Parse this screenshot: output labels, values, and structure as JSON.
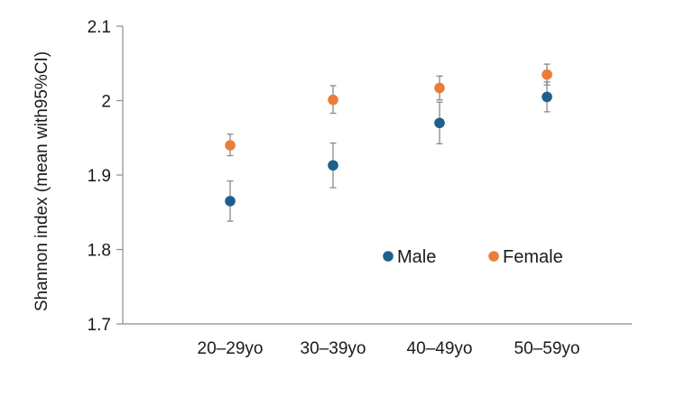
{
  "chart_data": {
    "type": "scatter",
    "categories": [
      "20–29yo",
      "30–39yo",
      "40–49yo",
      "50–59yo"
    ],
    "ylabel": "Shannon index (mean with95%CI)",
    "xlabel": "",
    "ylim": [
      1.7,
      2.1
    ],
    "yticks": [
      "1.7",
      "1.8",
      "1.9",
      "2",
      "2.1"
    ],
    "grid": false,
    "legend_position": "lower-right",
    "series": [
      {
        "name": "Male",
        "color": "#1f5f8b",
        "values": [
          1.865,
          1.913,
          1.97,
          2.005
        ],
        "ci_low": [
          1.838,
          1.883,
          1.942,
          1.985
        ],
        "ci_high": [
          1.892,
          1.943,
          1.998,
          2.025
        ]
      },
      {
        "name": "Female",
        "color": "#ec7c3c",
        "values": [
          1.94,
          2.001,
          2.017,
          2.035
        ],
        "ci_low": [
          1.926,
          1.983,
          2.001,
          2.021
        ],
        "ci_high": [
          1.955,
          2.02,
          2.033,
          2.049
        ]
      }
    ]
  }
}
